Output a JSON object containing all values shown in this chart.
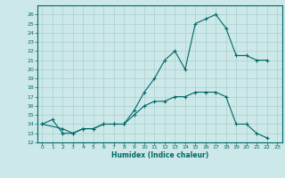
{
  "title": "",
  "xlabel": "Humidex (Indice chaleur)",
  "ylabel": "",
  "bg_color": "#cce8e8",
  "grid_color": "#aacfcf",
  "line_color": "#006868",
  "xlim": [
    -0.5,
    23.5
  ],
  "ylim": [
    12,
    27
  ],
  "xticks": [
    0,
    1,
    2,
    3,
    4,
    5,
    6,
    7,
    8,
    9,
    10,
    11,
    12,
    13,
    14,
    15,
    16,
    17,
    18,
    19,
    20,
    21,
    22,
    23
  ],
  "yticks": [
    12,
    13,
    14,
    15,
    16,
    17,
    18,
    19,
    20,
    21,
    22,
    23,
    24,
    25,
    26
  ],
  "line1_x": [
    0,
    1,
    2,
    3,
    4,
    5,
    6,
    7,
    8,
    9,
    10,
    11,
    12,
    13,
    14,
    15,
    16,
    17,
    18,
    19,
    20,
    21,
    22
  ],
  "line1_y": [
    14,
    14.5,
    13,
    13,
    13.5,
    13.5,
    14,
    14,
    14,
    15.5,
    17.5,
    19,
    21,
    22,
    20,
    25,
    25.5,
    26,
    24.5,
    21.5,
    21.5,
    21,
    21
  ],
  "line2_x": [
    0,
    2,
    3,
    4,
    5,
    6,
    7,
    8,
    9,
    10,
    11,
    12,
    13,
    14,
    15,
    16,
    17,
    18,
    19,
    20,
    21,
    22
  ],
  "line2_y": [
    14,
    13.5,
    13,
    13.5,
    13.5,
    14,
    14,
    14,
    15,
    16,
    16.5,
    16.5,
    17,
    17,
    17.5,
    17.5,
    17.5,
    17,
    14,
    14,
    13,
    12.5
  ],
  "line3_x": [
    3,
    22
  ],
  "line3_y": [
    12,
    12
  ]
}
